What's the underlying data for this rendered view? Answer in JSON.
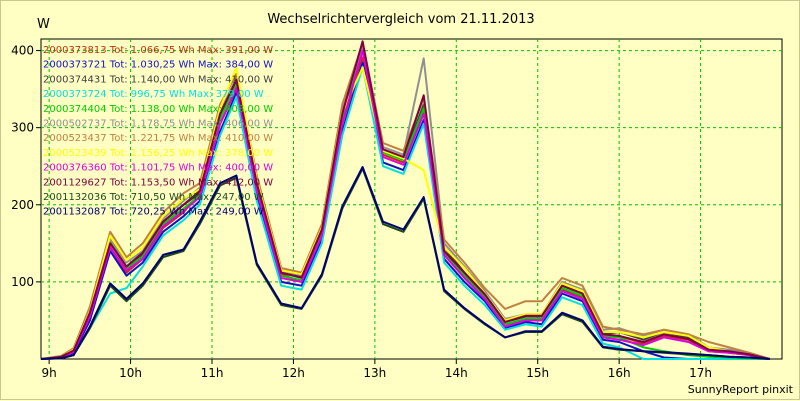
{
  "chart_data": {
    "type": "line",
    "title": "Wechselrichtervergleich vom 21.11.2013",
    "ylabel": "W",
    "xlabel": "",
    "credit": "SunnyReport pinxit",
    "x_ticks": [
      "9h",
      "10h",
      "11h",
      "12h",
      "13h",
      "14h",
      "15h",
      "16h",
      "17h"
    ],
    "y_ticks": [
      "100",
      "200",
      "300",
      "400"
    ],
    "xlim": [
      8.9,
      18.0
    ],
    "ylim": [
      0,
      415
    ],
    "grid": true,
    "legend_position": "top-left",
    "x": [
      8.9,
      9.15,
      9.3,
      9.5,
      9.75,
      9.95,
      10.15,
      10.4,
      10.65,
      10.85,
      11.1,
      11.3,
      11.55,
      11.85,
      12.1,
      12.35,
      12.6,
      12.85,
      13.1,
      13.35,
      13.6,
      13.85,
      14.1,
      14.35,
      14.6,
      14.85,
      15.05,
      15.3,
      15.55,
      15.8,
      16.0,
      16.3,
      16.55,
      16.85,
      17.1,
      17.35,
      17.6,
      17.85
    ],
    "series": [
      {
        "name": "2000373813",
        "label": "2000373813 Tot: 1.066,75 Wh Max: 391,00 W",
        "color": "#c03010",
        "values": [
          0,
          2,
          8,
          55,
          145,
          112,
          130,
          170,
          190,
          215,
          305,
          350,
          220,
          110,
          100,
          160,
          305,
          391,
          265,
          255,
          320,
          140,
          110,
          80,
          45,
          50,
          50,
          90,
          80,
          30,
          30,
          20,
          30,
          25,
          10,
          8,
          5,
          0
        ]
      },
      {
        "name": "2000373721",
        "label": "2000373721 Tot: 1.030,25 Wh Max: 384,00 W",
        "color": "#1010c8",
        "values": [
          0,
          2,
          8,
          50,
          140,
          108,
          125,
          165,
          185,
          205,
          295,
          345,
          210,
          100,
          95,
          155,
          295,
          384,
          255,
          245,
          310,
          130,
          100,
          75,
          40,
          48,
          45,
          85,
          75,
          25,
          22,
          10,
          2,
          0,
          0,
          0,
          0,
          0
        ]
      },
      {
        "name": "2000374431",
        "label": "2000374431 Tot: 1.140,00 Wh Max: 410,00 W",
        "color": "#404040",
        "values": [
          0,
          3,
          10,
          58,
          150,
          120,
          135,
          178,
          200,
          215,
          315,
          360,
          225,
          112,
          105,
          165,
          315,
          410,
          270,
          260,
          330,
          145,
          112,
          82,
          48,
          55,
          55,
          95,
          85,
          32,
          35,
          25,
          35,
          28,
          12,
          10,
          6,
          0
        ]
      },
      {
        "name": "2000373724",
        "label": "2000373724 Tot: 996,75 Wh Max: 379,00 W",
        "color": "#00e0e0",
        "values": [
          0,
          1,
          5,
          40,
          85,
          92,
          120,
          160,
          180,
          200,
          290,
          340,
          205,
          95,
          90,
          150,
          290,
          379,
          250,
          240,
          305,
          125,
          95,
          70,
          38,
          45,
          42,
          80,
          70,
          20,
          15,
          0,
          0,
          0,
          0,
          0,
          0,
          0
        ]
      },
      {
        "name": "2000374404",
        "label": "2000374404 Tot: 1.138,00 Wh Max: 403,00 W",
        "color": "#00cc00",
        "values": [
          0,
          3,
          10,
          58,
          152,
          118,
          133,
          175,
          195,
          212,
          312,
          358,
          222,
          108,
          102,
          162,
          312,
          403,
          268,
          258,
          325,
          138,
          108,
          80,
          45,
          52,
          52,
          92,
          82,
          30,
          28,
          15,
          10,
          5,
          3,
          2,
          1,
          0
        ]
      },
      {
        "name": "2000502737",
        "label": "2000502737 Tot: 1.178,75 Wh Max: 406,00 W",
        "color": "#909090",
        "values": [
          0,
          3,
          12,
          62,
          155,
          125,
          140,
          182,
          205,
          222,
          320,
          365,
          230,
          115,
          108,
          170,
          322,
          406,
          275,
          265,
          390,
          150,
          120,
          88,
          52,
          58,
          58,
          100,
          90,
          38,
          40,
          30,
          38,
          32,
          15,
          12,
          8,
          0
        ]
      },
      {
        "name": "2000523437",
        "label": "2000523437 Tot: 1.221,75 Wh Max: 410,00 W",
        "color": "#c08040",
        "values": [
          0,
          4,
          14,
          68,
          165,
          132,
          150,
          190,
          215,
          228,
          330,
          370,
          238,
          118,
          112,
          175,
          330,
          410,
          280,
          270,
          338,
          155,
          125,
          92,
          65,
          75,
          75,
          105,
          95,
          42,
          38,
          32,
          38,
          32,
          22,
          15,
          8,
          0
        ]
      },
      {
        "name": "2000523439",
        "label": "2000523439 Tot: 1.156,25 Wh Max: 378,00 W",
        "color": "#ffff00",
        "values": [
          0,
          3,
          12,
          62,
          160,
          128,
          145,
          185,
          208,
          220,
          325,
          378,
          232,
          115,
          110,
          170,
          320,
          378,
          270,
          260,
          245,
          145,
          118,
          85,
          50,
          58,
          58,
          98,
          88,
          35,
          35,
          28,
          35,
          30,
          15,
          10,
          5,
          0
        ]
      },
      {
        "name": "2000376360",
        "label": "2000376360 Tot: 1.101,75 Wh Max: 400,00 W",
        "color": "#e000e0",
        "values": [
          0,
          2,
          9,
          55,
          145,
          115,
          130,
          172,
          192,
          210,
          305,
          352,
          218,
          105,
          100,
          160,
          305,
          400,
          262,
          252,
          318,
          135,
          105,
          78,
          42,
          50,
          50,
          88,
          78,
          28,
          25,
          18,
          28,
          22,
          10,
          8,
          5,
          0
        ]
      },
      {
        "name": "2001129627",
        "label": "2001129627 Tot: 1.153,50 Wh Max: 412,00 W",
        "color": "#800040",
        "values": [
          0,
          3,
          11,
          60,
          150,
          120,
          138,
          178,
          200,
          218,
          318,
          362,
          228,
          112,
          106,
          168,
          318,
          412,
          272,
          262,
          342,
          140,
          112,
          84,
          48,
          56,
          56,
          95,
          85,
          32,
          30,
          22,
          32,
          26,
          12,
          10,
          6,
          0
        ]
      },
      {
        "name": "2001132036",
        "label": "2001132036 Tot: 710,50 Wh Max: 247,00 W",
        "color": "#1a4a1a",
        "values": [
          0,
          1,
          5,
          40,
          95,
          75,
          95,
          132,
          140,
          175,
          225,
          235,
          122,
          70,
          65,
          108,
          195,
          247,
          175,
          165,
          208,
          88,
          65,
          45,
          28,
          35,
          35,
          58,
          48,
          15,
          12,
          10,
          8,
          6,
          5,
          3,
          2,
          0
        ]
      },
      {
        "name": "2001132087",
        "label": "2001132087 Tot: 720,25 Wh Max: 249,00 W",
        "color": "#000070",
        "values": [
          0,
          1,
          5,
          42,
          98,
          78,
          98,
          135,
          142,
          178,
          228,
          238,
          124,
          72,
          66,
          110,
          198,
          249,
          178,
          168,
          210,
          90,
          66,
          46,
          28,
          36,
          36,
          60,
          50,
          16,
          13,
          10,
          9,
          7,
          5,
          3,
          2,
          0
        ]
      }
    ]
  }
}
